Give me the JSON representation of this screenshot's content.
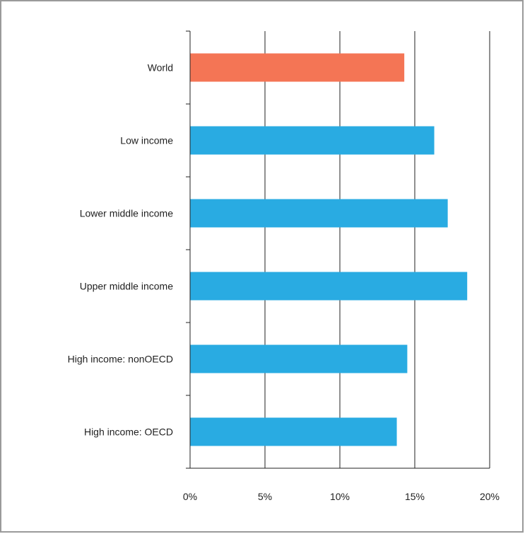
{
  "chart_data": {
    "type": "bar",
    "orientation": "horizontal",
    "title": "",
    "xlabel": "",
    "ylabel": "",
    "categories": [
      "World",
      "Low income",
      "Lower middle income",
      "Upper middle income",
      "High income: nonOECD",
      "High income: OECD"
    ],
    "values": [
      14.3,
      16.3,
      17.2,
      18.5,
      14.5,
      13.8
    ],
    "bar_colors": [
      "#f47555",
      "#29abe2",
      "#29abe2",
      "#29abe2",
      "#29abe2",
      "#29abe2"
    ],
    "xlim": [
      0,
      20
    ],
    "xticks": [
      0,
      5,
      10,
      15,
      20
    ],
    "xtick_labels": [
      "0%",
      "5%",
      "10%",
      "15%",
      "20%"
    ],
    "grid": "vertical",
    "legend": "none"
  }
}
